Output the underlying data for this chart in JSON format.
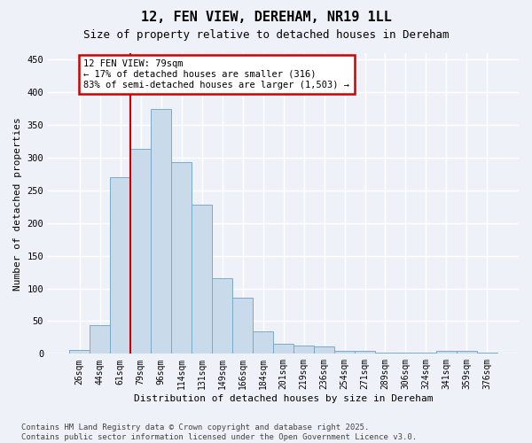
{
  "title1": "12, FEN VIEW, DEREHAM, NR19 1LL",
  "title2": "Size of property relative to detached houses in Dereham",
  "xlabel": "Distribution of detached houses by size in Dereham",
  "ylabel": "Number of detached properties",
  "categories": [
    "26sqm",
    "44sqm",
    "61sqm",
    "79sqm",
    "96sqm",
    "114sqm",
    "131sqm",
    "149sqm",
    "166sqm",
    "184sqm",
    "201sqm",
    "219sqm",
    "236sqm",
    "254sqm",
    "271sqm",
    "289sqm",
    "306sqm",
    "324sqm",
    "341sqm",
    "359sqm",
    "376sqm"
  ],
  "bar_heights": [
    6,
    44,
    270,
    313,
    375,
    293,
    228,
    116,
    86,
    35,
    16,
    13,
    11,
    5,
    4,
    2,
    2,
    2,
    5,
    5,
    2
  ],
  "bar_color": "#c9daea",
  "bar_edge_color": "#7aaac8",
  "vline_color": "#cc0000",
  "vline_x_idx": 3,
  "background_color": "#eef2f8",
  "grid_color": "#d8e4f0",
  "annotation_text": "12 FEN VIEW: 79sqm\n← 17% of detached houses are smaller (316)\n83% of semi-detached houses are larger (1,503) →",
  "annotation_box_facecolor": "#ffffff",
  "annotation_box_edge": "#cc0000",
  "footer1": "Contains HM Land Registry data © Crown copyright and database right 2025.",
  "footer2": "Contains public sector information licensed under the Open Government Licence v3.0.",
  "ylim": [
    0,
    460
  ],
  "yticks": [
    0,
    50,
    100,
    150,
    200,
    250,
    300,
    350,
    400,
    450
  ]
}
